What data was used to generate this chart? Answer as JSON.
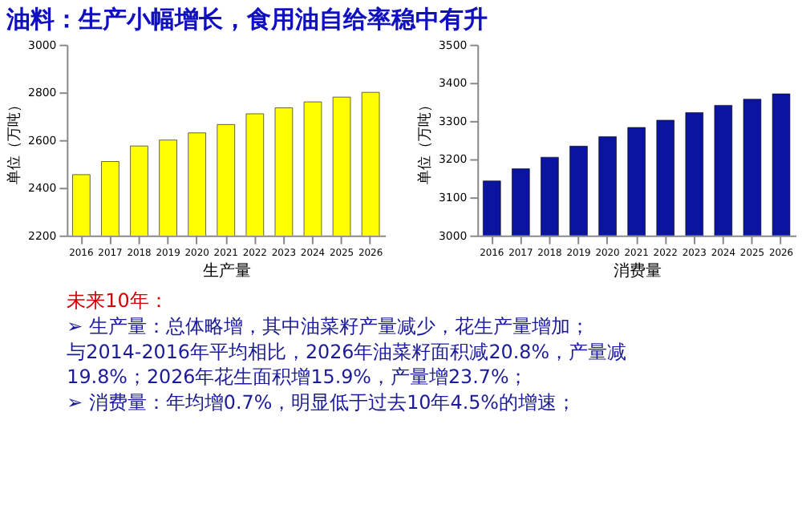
{
  "chart_data": [
    {
      "type": "bar",
      "title": "油料：生产小幅增长，食用油自给率稳中有升",
      "categories": [
        "2016",
        "2017",
        "2018",
        "2019",
        "2020",
        "2021",
        "2022",
        "2023",
        "2024",
        "2025",
        "2026"
      ],
      "values": [
        2455,
        2510,
        2575,
        2600,
        2630,
        2665,
        2710,
        2735,
        2760,
        2780,
        2800
      ],
      "color": "#ffff00",
      "ylim": [
        2200,
        3000
      ],
      "yticks": [
        2200,
        2400,
        2600,
        2800,
        3000
      ],
      "ylabel": "单位（万吨）",
      "xlabel": "生产量",
      "grid": false,
      "annotations": [
        "未来10年：",
        "➢  生产量：总体略增，其中油菜籽产量减少，花生产量增加；",
        "    与2014-2016年平均相比，2026年油菜籽面积减20.8%，产量减",
        "19.8%；2026年花生面积增15.9%，产量增23.7%；",
        "➢  消费量：年均增0.7%，明显低于过去10年4.5%的增速；"
      ]
    },
    {
      "type": "bar",
      "categories": [
        "2016",
        "2017",
        "2018",
        "2019",
        "2020",
        "2021",
        "2022",
        "2023",
        "2024",
        "2025",
        "2026"
      ],
      "values": [
        3143,
        3175,
        3205,
        3234,
        3259,
        3283,
        3302,
        3322,
        3341,
        3357,
        3371
      ],
      "color": "#0a14a0",
      "ylim": [
        3000,
        3500
      ],
      "yticks": [
        3000,
        3100,
        3200,
        3300,
        3400,
        3500
      ],
      "ylabel": "单位（万吨）",
      "xlabel": "消费量",
      "grid": false
    }
  ]
}
